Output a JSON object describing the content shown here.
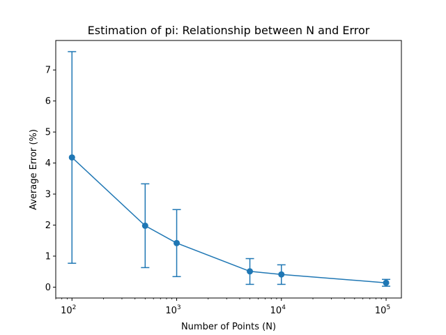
{
  "chart_data": {
    "type": "line",
    "title": "Estimation of pi: Relationship between N and Error",
    "xlabel": "Number of Points (N)",
    "ylabel": "Average Error (%)",
    "x_scale": "log",
    "xlim": [
      70,
      140000
    ],
    "ylim": [
      -0.35,
      7.95
    ],
    "x_ticks": [
      {
        "value": 100,
        "base": "10",
        "exp": "2"
      },
      {
        "value": 1000,
        "base": "10",
        "exp": "3"
      },
      {
        "value": 10000,
        "base": "10",
        "exp": "4"
      },
      {
        "value": 100000,
        "base": "10",
        "exp": "5"
      }
    ],
    "y_ticks": [
      0,
      1,
      2,
      3,
      4,
      5,
      6,
      7
    ],
    "grid": false,
    "series": [
      {
        "color": "#1f77b4",
        "marker": "circle",
        "x": [
          100,
          500,
          1000,
          5000,
          10000,
          100000
        ],
        "y": [
          4.18,
          1.98,
          1.42,
          0.51,
          0.41,
          0.14
        ],
        "error_low": [
          0.77,
          0.63,
          0.34,
          0.09,
          0.09,
          0.03
        ],
        "error_high": [
          7.59,
          3.33,
          2.5,
          0.92,
          0.72,
          0.25
        ]
      }
    ]
  }
}
